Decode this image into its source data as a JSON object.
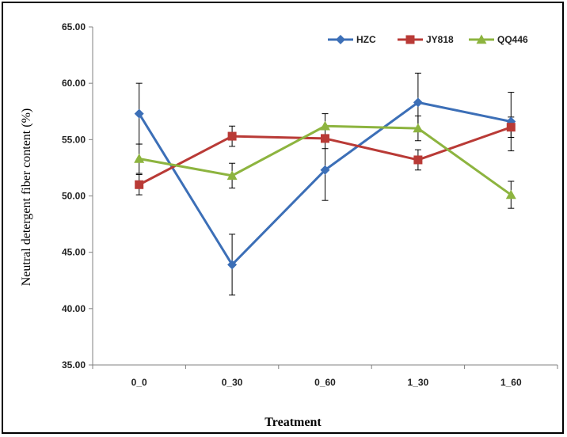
{
  "chart_data": {
    "type": "line",
    "title": "",
    "xlabel": "Treatment",
    "ylabel": "Neutral  detergent fiber content (%)",
    "categories": [
      "0_0",
      "0_30",
      "0_60",
      "1_30",
      "1_60"
    ],
    "ylim": [
      35,
      65
    ],
    "yticks": [
      "35.00",
      "40.00",
      "45.00",
      "50.00",
      "55.00",
      "60.00",
      "65.00"
    ],
    "grid": false,
    "legend_position": "top-right",
    "series": [
      {
        "name": "HZC",
        "color": "#3C6FB7",
        "marker": "diamond",
        "values": [
          57.3,
          43.9,
          52.3,
          58.3,
          56.6
        ],
        "errors": [
          2.7,
          2.7,
          2.7,
          2.6,
          2.6
        ]
      },
      {
        "name": "JY818",
        "color": "#B93A36",
        "marker": "square",
        "values": [
          51.0,
          55.3,
          55.1,
          53.2,
          56.1
        ],
        "errors": [
          0.9,
          0.9,
          0.9,
          0.9,
          0.9
        ]
      },
      {
        "name": "QQ446",
        "color": "#8DB43F",
        "marker": "triangle",
        "values": [
          53.3,
          51.8,
          56.2,
          56.0,
          50.1
        ],
        "errors": [
          1.3,
          1.1,
          1.1,
          1.1,
          1.2
        ]
      }
    ]
  }
}
